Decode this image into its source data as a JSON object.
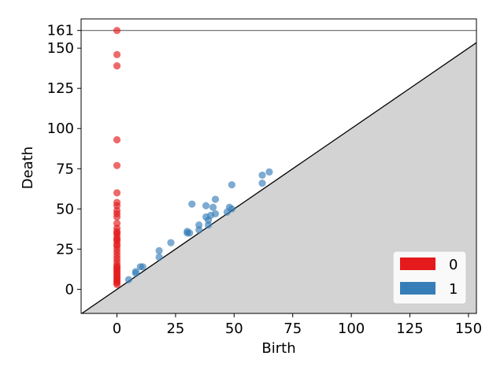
{
  "chart_data": {
    "type": "scatter",
    "title": "",
    "xlabel": "Birth",
    "ylabel": "Death",
    "xlim": [
      -15.3,
      153.4
    ],
    "ylim": [
      -15,
      168.2
    ],
    "xticks": [
      0,
      25,
      50,
      75,
      100,
      125,
      150
    ],
    "yticks": [
      0,
      25,
      50,
      75,
      100,
      125,
      150,
      161
    ],
    "infinity_value": 161,
    "diagonal_shaded": true,
    "legend": {
      "placement": "lower-right",
      "entries": [
        "0",
        "1"
      ]
    },
    "colors": {
      "dim0": "#e41a1c",
      "dim1": "#377eb8",
      "shade": "#d3d3d3",
      "infinity_line": "#666666"
    },
    "series": [
      {
        "name": "0",
        "color": "#e41a1c",
        "points": [
          [
            0,
            161
          ],
          [
            0,
            146
          ],
          [
            0,
            139
          ],
          [
            0,
            93
          ],
          [
            0,
            77
          ],
          [
            0,
            60
          ],
          [
            0,
            54
          ],
          [
            0,
            52
          ],
          [
            0,
            49
          ],
          [
            0,
            47
          ],
          [
            0,
            45
          ],
          [
            0,
            41
          ],
          [
            0,
            38
          ],
          [
            0,
            36
          ],
          [
            0,
            35
          ],
          [
            0,
            34
          ],
          [
            0,
            32
          ],
          [
            0,
            31
          ],
          [
            0,
            30
          ],
          [
            0,
            28
          ],
          [
            0,
            27
          ],
          [
            0,
            25
          ],
          [
            0,
            23
          ],
          [
            0,
            21
          ],
          [
            0,
            19
          ],
          [
            0,
            17
          ],
          [
            0,
            15
          ],
          [
            0,
            14
          ],
          [
            0,
            13
          ],
          [
            0,
            12
          ],
          [
            0,
            11
          ],
          [
            0,
            10
          ],
          [
            0,
            9
          ],
          [
            0,
            8
          ],
          [
            0,
            7
          ],
          [
            0,
            6
          ],
          [
            0,
            5
          ],
          [
            0,
            4
          ],
          [
            0,
            3
          ]
        ]
      },
      {
        "name": "1",
        "color": "#377eb8",
        "points": [
          [
            5,
            6
          ],
          [
            8,
            10
          ],
          [
            8,
            11
          ],
          [
            10,
            14
          ],
          [
            11,
            14
          ],
          [
            18,
            20
          ],
          [
            18,
            24
          ],
          [
            23,
            29
          ],
          [
            30,
            35
          ],
          [
            30,
            36
          ],
          [
            31,
            35
          ],
          [
            32,
            53
          ],
          [
            35,
            37
          ],
          [
            35,
            40
          ],
          [
            38,
            45
          ],
          [
            38,
            52
          ],
          [
            39,
            40
          ],
          [
            39,
            43
          ],
          [
            40,
            46
          ],
          [
            41,
            51
          ],
          [
            42,
            47
          ],
          [
            42,
            56
          ],
          [
            47,
            48
          ],
          [
            48,
            51
          ],
          [
            49,
            50
          ],
          [
            49,
            65
          ],
          [
            62,
            66
          ],
          [
            62,
            71
          ],
          [
            65,
            73
          ]
        ]
      }
    ]
  }
}
